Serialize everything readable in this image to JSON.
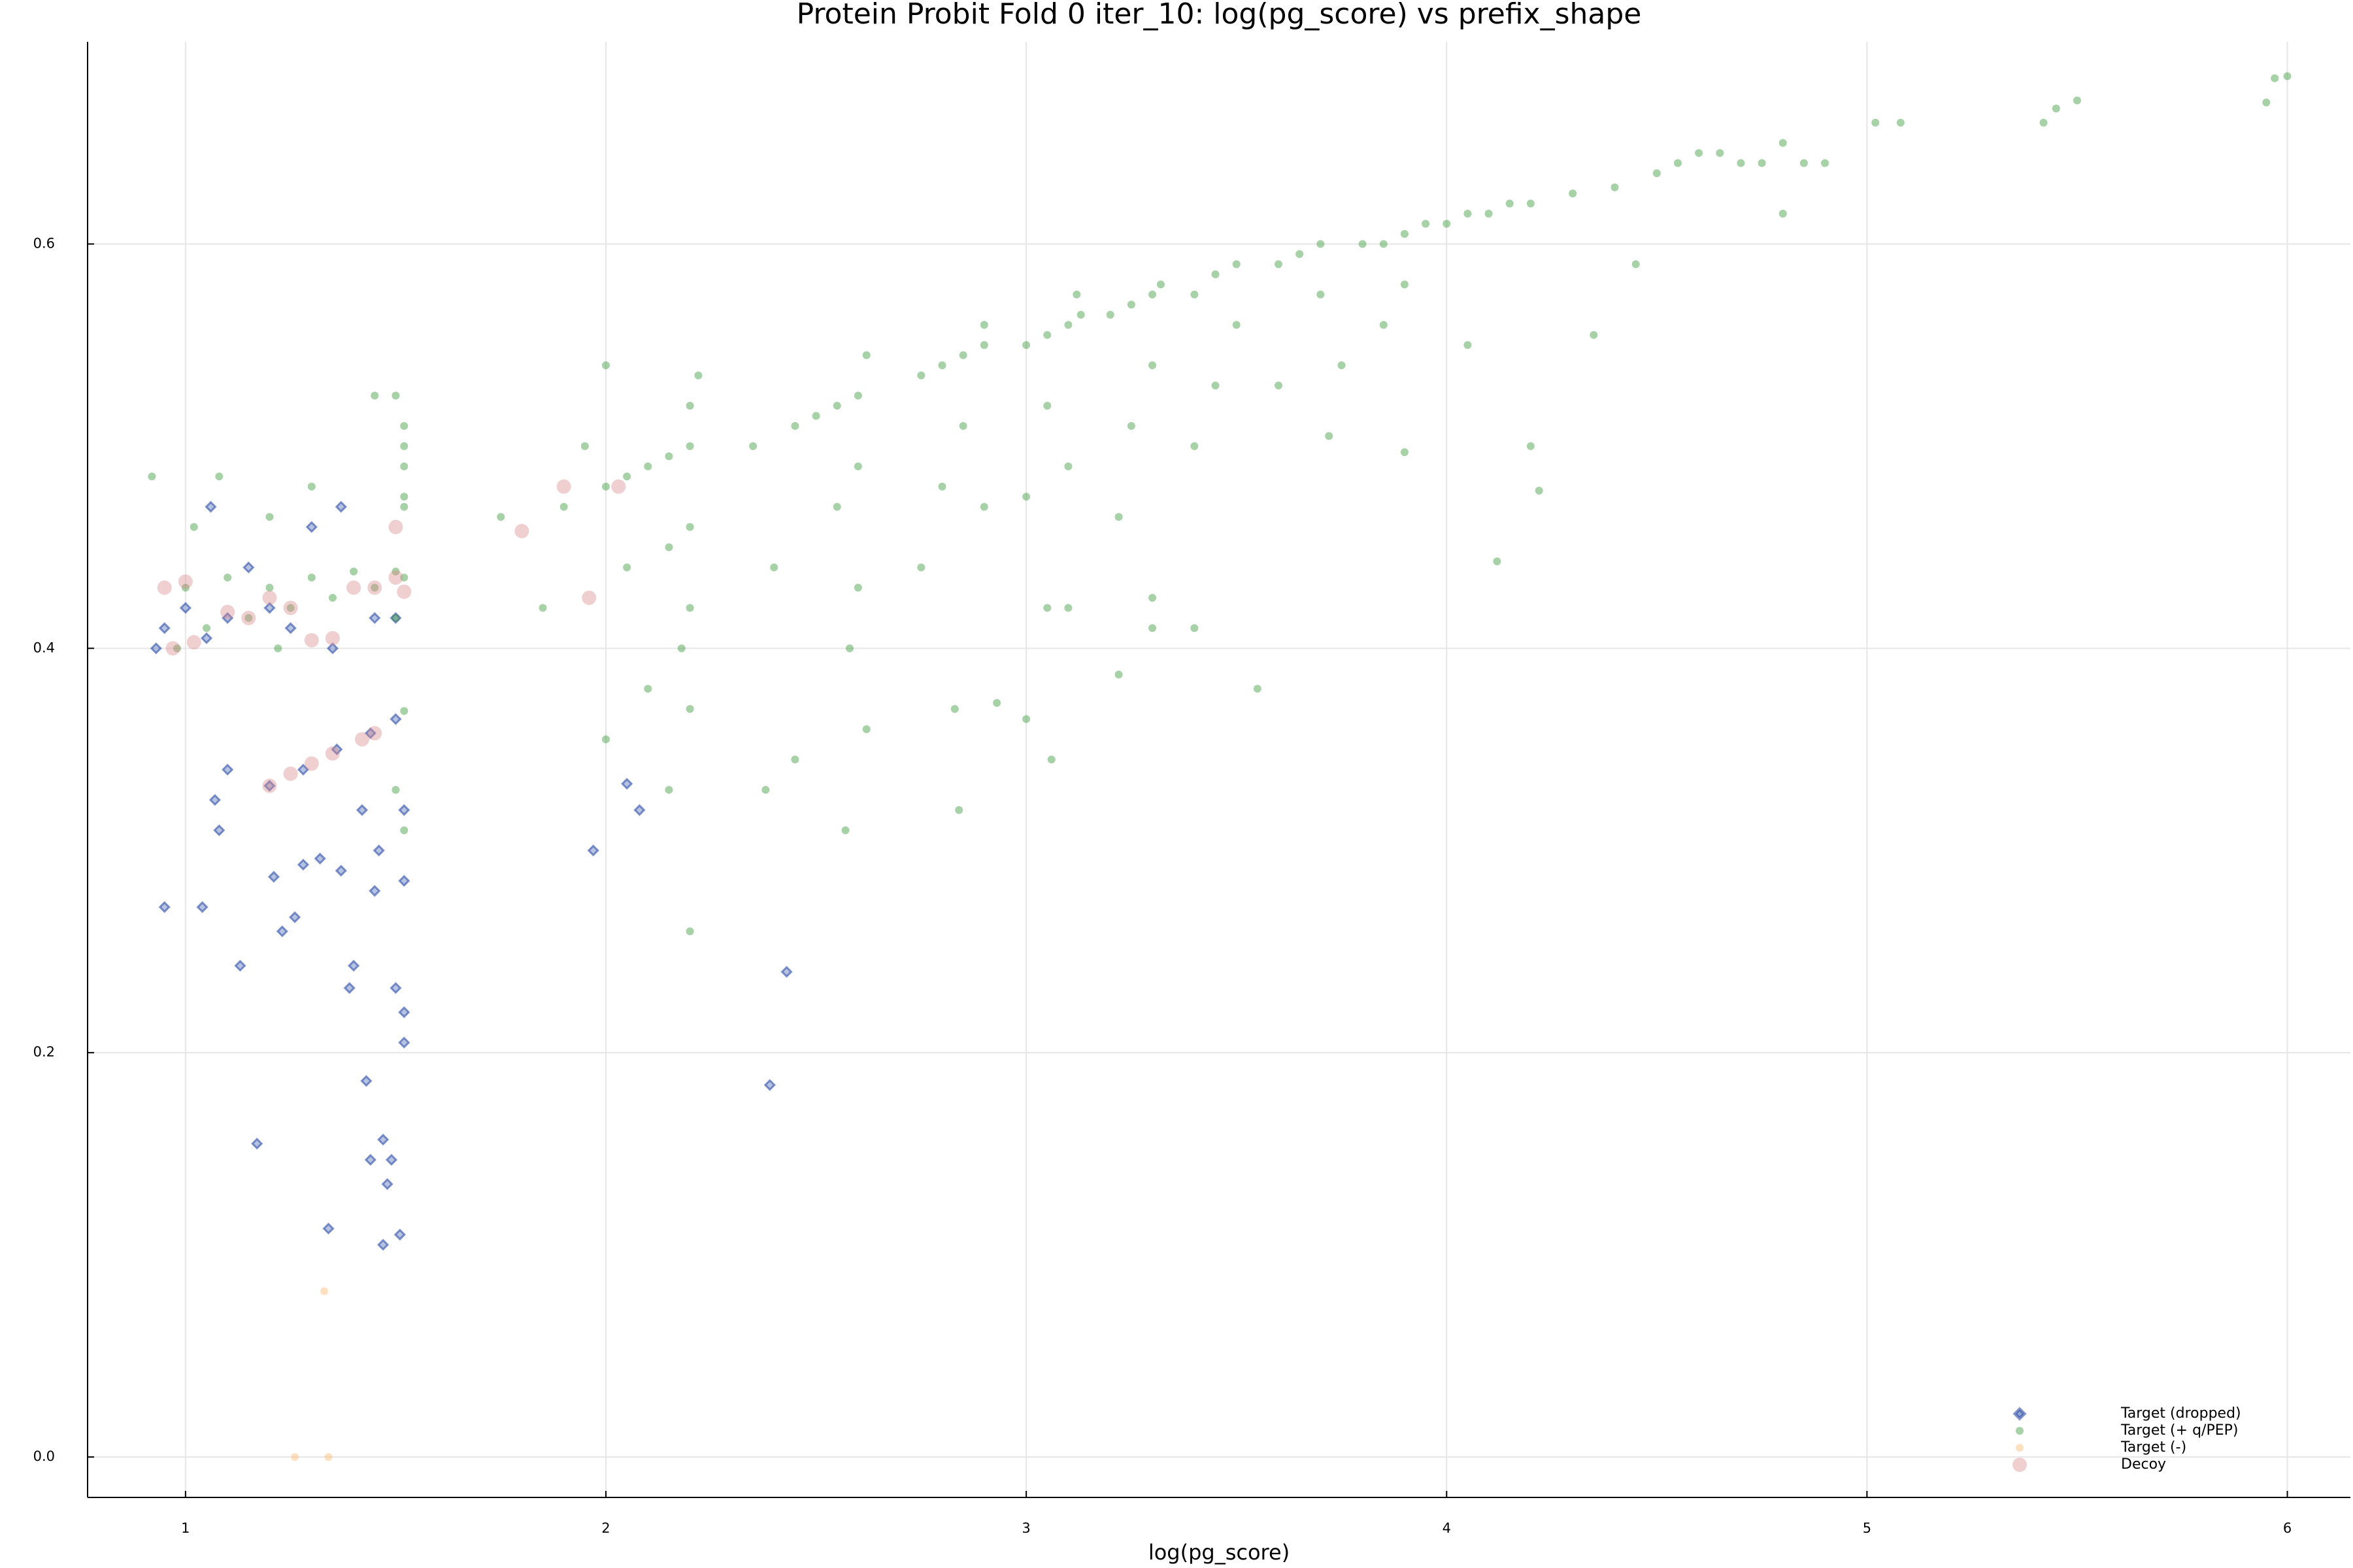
{
  "chart_data": {
    "type": "scatter",
    "title": "Protein Probit Fold 0 iter_10: log(pg_score) vs prefix_shape",
    "x_label": "log(pg_score)",
    "xlim": [
      0.767,
      6.15
    ],
    "ylim": [
      -0.02,
      0.7
    ],
    "xticks": [
      1,
      2,
      3,
      4,
      5,
      6
    ],
    "yticks": [
      {
        "value": 0,
        "label": "0.0"
      },
      {
        "value": 0.2,
        "label": "0.2"
      },
      {
        "value": 0.4,
        "label": "0.4"
      },
      {
        "value": 0.6,
        "label": "0.6"
      }
    ],
    "grid": true,
    "legend": "bottom right",
    "series": [
      {
        "name": "Target (dropped)",
        "color": "#2f4fa8",
        "marker": "diamond",
        "x": [
          0.93,
          0.95,
          1.0,
          1.05,
          1.1,
          1.2,
          1.15,
          1.25,
          1.35,
          1.45,
          1.5,
          1.3,
          1.37,
          1.06,
          1.2,
          1.28,
          1.36,
          1.44,
          1.5,
          0.95,
          1.04,
          1.07,
          1.08,
          1.1,
          1.13,
          1.17,
          1.21,
          1.23,
          1.26,
          1.28,
          1.32,
          1.34,
          1.37,
          1.39,
          1.4,
          1.42,
          1.43,
          1.44,
          1.45,
          1.46,
          1.47,
          1.48,
          1.49,
          1.5,
          1.51,
          1.52,
          1.52,
          1.52,
          1.52,
          1.47,
          1.97,
          2.05,
          2.08,
          2.43,
          2.39
        ],
        "y": [
          0.4,
          0.41,
          0.42,
          0.405,
          0.415,
          0.42,
          0.44,
          0.41,
          0.4,
          0.415,
          0.415,
          0.46,
          0.47,
          0.47,
          0.332,
          0.34,
          0.35,
          0.358,
          0.365,
          0.272,
          0.272,
          0.325,
          0.31,
          0.34,
          0.243,
          0.155,
          0.287,
          0.26,
          0.267,
          0.293,
          0.296,
          0.113,
          0.29,
          0.232,
          0.243,
          0.32,
          0.186,
          0.147,
          0.28,
          0.3,
          0.157,
          0.135,
          0.147,
          0.232,
          0.11,
          0.22,
          0.205,
          0.285,
          0.32,
          0.105,
          0.3,
          0.333,
          0.32,
          0.24,
          0.184
        ]
      },
      {
        "name": "Target (+ q/PEP)",
        "color": "#228b22",
        "marker": "circle",
        "x": [
          0.92,
          1.0,
          1.1,
          1.2,
          1.3,
          1.4,
          1.5,
          1.52,
          1.45,
          1.35,
          1.25,
          1.15,
          1.05,
          0.98,
          1.22,
          1.5,
          1.52,
          1.52,
          1.52,
          1.52,
          1.52,
          1.5,
          1.45,
          1.3,
          1.2,
          1.08,
          1.02,
          1.52,
          1.5,
          1.52,
          2.2,
          2.15,
          2.1,
          2.05,
          2.0,
          2.2,
          2.22,
          2.2,
          2.15,
          2.2,
          2.18,
          2.1,
          2.2,
          2.05,
          1.95,
          2.0,
          1.9,
          1.85,
          1.75,
          2.2,
          2.0,
          2.15,
          2.6,
          2.55,
          2.5,
          2.45,
          2.62,
          2.6,
          2.55,
          2.6,
          2.58,
          2.62,
          2.57,
          2.45,
          2.38,
          2.4,
          2.35,
          2.9,
          2.85,
          2.8,
          2.75,
          2.9,
          2.85,
          2.8,
          2.9,
          2.75,
          2.83,
          2.84,
          2.93,
          3.13,
          3.1,
          3.05,
          3.0,
          3.12,
          3.05,
          3.1,
          3.0,
          3.05,
          3.0,
          3.06,
          3.1,
          3.32,
          3.3,
          3.25,
          3.2,
          3.3,
          3.25,
          3.22,
          3.3,
          3.3,
          3.4,
          3.22,
          3.5,
          3.45,
          3.4,
          3.5,
          3.45,
          3.4,
          3.55,
          3.6,
          3.7,
          3.65,
          3.6,
          3.7,
          3.75,
          3.72,
          3.9,
          3.85,
          3.8,
          3.95,
          3.9,
          3.85,
          3.9,
          4.0,
          4.05,
          4.1,
          4.15,
          4.2,
          4.05,
          4.2,
          4.22,
          4.12,
          4.3,
          4.35,
          4.4,
          4.45,
          4.5,
          4.55,
          4.6,
          4.65,
          4.7,
          4.75,
          4.8,
          4.85,
          4.9,
          4.8,
          5.02,
          5.08,
          5.42,
          5.45,
          5.5,
          5.95,
          5.97,
          6.0
        ],
        "y": [
          0.485,
          0.43,
          0.435,
          0.43,
          0.435,
          0.438,
          0.438,
          0.435,
          0.43,
          0.425,
          0.42,
          0.415,
          0.41,
          0.4,
          0.4,
          0.415,
          0.47,
          0.475,
          0.49,
          0.5,
          0.51,
          0.525,
          0.525,
          0.48,
          0.465,
          0.485,
          0.46,
          0.369,
          0.33,
          0.31,
          0.5,
          0.495,
          0.49,
          0.485,
          0.48,
          0.52,
          0.535,
          0.46,
          0.45,
          0.42,
          0.4,
          0.38,
          0.37,
          0.44,
          0.5,
          0.54,
          0.47,
          0.42,
          0.465,
          0.26,
          0.355,
          0.33,
          0.525,
          0.52,
          0.515,
          0.51,
          0.545,
          0.49,
          0.47,
          0.43,
          0.4,
          0.36,
          0.31,
          0.345,
          0.33,
          0.44,
          0.5,
          0.55,
          0.545,
          0.54,
          0.535,
          0.56,
          0.51,
          0.48,
          0.47,
          0.44,
          0.37,
          0.32,
          0.373,
          0.565,
          0.56,
          0.555,
          0.55,
          0.575,
          0.52,
          0.49,
          0.475,
          0.42,
          0.365,
          0.345,
          0.42,
          0.58,
          0.575,
          0.57,
          0.565,
          0.54,
          0.51,
          0.465,
          0.425,
          0.41,
          0.41,
          0.387,
          0.59,
          0.585,
          0.575,
          0.56,
          0.53,
          0.5,
          0.38,
          0.53,
          0.6,
          0.595,
          0.59,
          0.575,
          0.54,
          0.505,
          0.605,
          0.6,
          0.6,
          0.61,
          0.58,
          0.56,
          0.497,
          0.61,
          0.615,
          0.615,
          0.62,
          0.62,
          0.55,
          0.5,
          0.478,
          0.443,
          0.625,
          0.555,
          0.628,
          0.59,
          0.635,
          0.64,
          0.645,
          0.645,
          0.64,
          0.64,
          0.65,
          0.64,
          0.64,
          0.615,
          0.66,
          0.66,
          0.66,
          0.667,
          0.671,
          0.67,
          0.682,
          0.683
        ]
      },
      {
        "name": "Target (-)",
        "color": "#ffb366",
        "marker": "circle",
        "x": [
          1.26,
          1.34,
          1.33
        ],
        "y": [
          0.0,
          0.0,
          0.082
        ]
      },
      {
        "name": "Decoy",
        "color": "#d9868c",
        "marker": "circle",
        "x": [
          0.95,
          1.0,
          0.97,
          1.02,
          1.1,
          1.2,
          1.25,
          1.3,
          1.35,
          1.4,
          1.45,
          1.5,
          1.52,
          1.5,
          1.2,
          1.25,
          1.3,
          1.35,
          1.45,
          1.42,
          1.8,
          1.9,
          2.03,
          1.96,
          1.15
        ],
        "y": [
          0.43,
          0.433,
          0.4,
          0.403,
          0.418,
          0.425,
          0.42,
          0.404,
          0.405,
          0.43,
          0.43,
          0.435,
          0.428,
          0.46,
          0.332,
          0.338,
          0.343,
          0.348,
          0.358,
          0.355,
          0.458,
          0.48,
          0.48,
          0.425,
          0.415
        ]
      }
    ]
  }
}
